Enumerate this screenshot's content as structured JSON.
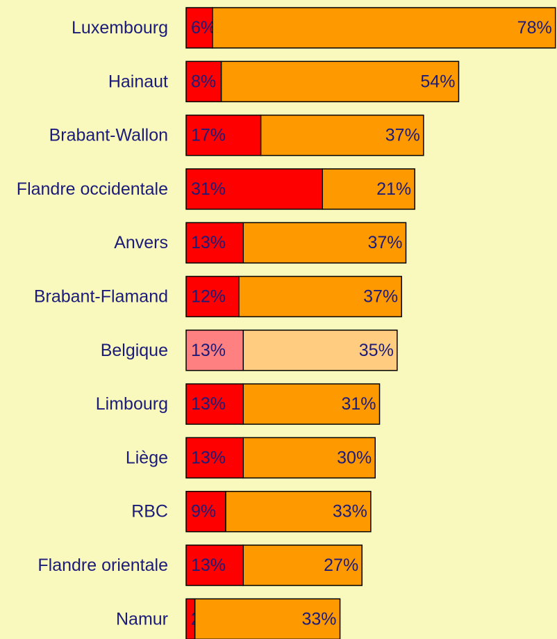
{
  "chart_data": {
    "type": "stacked-bar-horizontal",
    "categories": [
      "Luxembourg",
      "Hainaut",
      "Brabant-Wallon",
      "Flandre occidentale",
      "Anvers",
      "Brabant-Flamand",
      "Belgique",
      "Limbourg",
      "Liège",
      "RBC",
      "Flandre orientale",
      "Namur"
    ],
    "series": [
      {
        "values": [
          6,
          8,
          17,
          31,
          13,
          12,
          13,
          13,
          13,
          9,
          13,
          2
        ],
        "value_labels": [
          "6%",
          "8%",
          "17%",
          "31%",
          "13%",
          "12%",
          "13%",
          "13%",
          "13%",
          "9%",
          "13%",
          "2%"
        ],
        "colors": [
          "#ff0000",
          "#ff0000",
          "#ff0000",
          "#ff0000",
          "#ff0000",
          "#ff0000",
          "#ff8080",
          "#ff0000",
          "#ff0000",
          "#ff0000",
          "#ff0000",
          "#ff0000"
        ]
      },
      {
        "values": [
          78,
          54,
          37,
          21,
          37,
          37,
          35,
          31,
          30,
          33,
          27,
          33
        ],
        "value_labels": [
          "78%",
          "54%",
          "37%",
          "21%",
          "37%",
          "37%",
          "35%",
          "31%",
          "30%",
          "33%",
          "27%",
          "33%"
        ],
        "colors": [
          "#ff9900",
          "#ff9900",
          "#ff9900",
          "#ff9900",
          "#ff9900",
          "#ff9900",
          "#ffcc80",
          "#ff9900",
          "#ff9900",
          "#ff9900",
          "#ff9900",
          "#ff9900"
        ]
      }
    ]
  }
}
